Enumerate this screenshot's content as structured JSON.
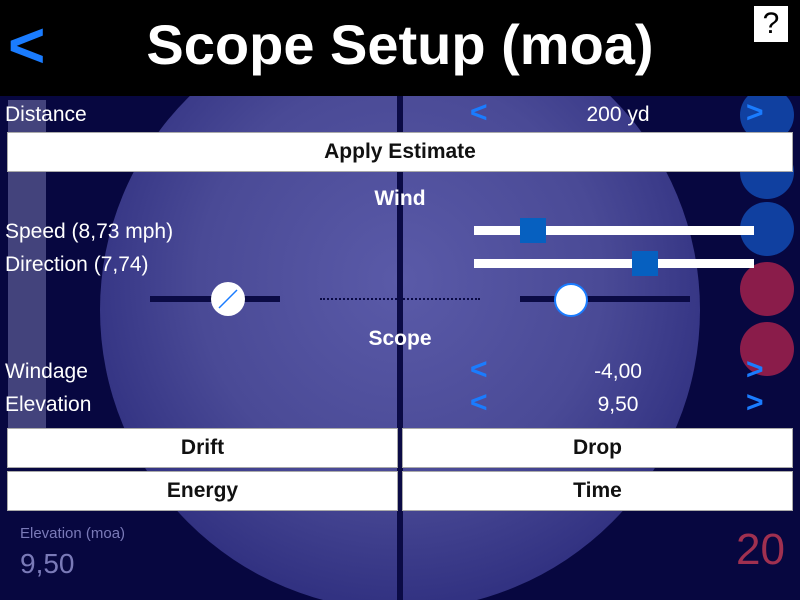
{
  "header": {
    "title": "Scope Setup (moa)",
    "back_icon": "chevron-left-icon",
    "help_label": "?"
  },
  "background": {
    "ghost_label": "Elevation (moa)",
    "ghost_value": "9,50",
    "ghost_number": "20"
  },
  "distance": {
    "label": "Distance",
    "value": "200 yd"
  },
  "apply_estimate_label": "Apply Estimate",
  "wind": {
    "heading": "Wind",
    "speed_label": "Speed (8,73 mph)",
    "speed_slider_percent": 21,
    "direction_label": "Direction (7,74)",
    "direction_slider_percent": 61
  },
  "scope": {
    "heading": "Scope",
    "windage_label": "Windage",
    "windage_value": "-4,00",
    "elevation_label": "Elevation",
    "elevation_value": "9,50"
  },
  "buttons": {
    "drift": "Drift",
    "drop": "Drop",
    "energy": "Energy",
    "time": "Time"
  },
  "chevrons": {
    "left": "<",
    "right": ">"
  },
  "colors": {
    "accent": "#1a7cff",
    "slider_thumb": "#0660c0",
    "header_bg": "#000000"
  }
}
